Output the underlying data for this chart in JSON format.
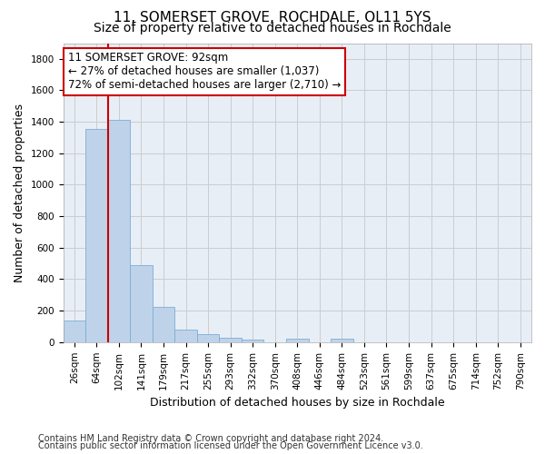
{
  "title_line1": "11, SOMERSET GROVE, ROCHDALE, OL11 5YS",
  "title_line2": "Size of property relative to detached houses in Rochdale",
  "xlabel": "Distribution of detached houses by size in Rochdale",
  "ylabel": "Number of detached properties",
  "categories": [
    "26sqm",
    "64sqm",
    "102sqm",
    "141sqm",
    "179sqm",
    "217sqm",
    "255sqm",
    "293sqm",
    "332sqm",
    "370sqm",
    "408sqm",
    "446sqm",
    "484sqm",
    "523sqm",
    "561sqm",
    "599sqm",
    "637sqm",
    "675sqm",
    "714sqm",
    "752sqm",
    "790sqm"
  ],
  "values": [
    135,
    1355,
    1410,
    490,
    225,
    80,
    50,
    27,
    15,
    0,
    20,
    0,
    20,
    0,
    0,
    0,
    0,
    0,
    0,
    0,
    0
  ],
  "bar_color": "#bed3ea",
  "bar_edge_color": "#7badd4",
  "vline_color": "#cc0000",
  "vline_pos": 1.5,
  "annotation_text": "11 SOMERSET GROVE: 92sqm\n← 27% of detached houses are smaller (1,037)\n72% of semi-detached houses are larger (2,710) →",
  "annotation_box_facecolor": "#ffffff",
  "annotation_box_edgecolor": "#cc0000",
  "ylim": [
    0,
    1900
  ],
  "yticks": [
    0,
    200,
    400,
    600,
    800,
    1000,
    1200,
    1400,
    1600,
    1800
  ],
  "grid_color": "#cccccc",
  "bg_color": "#e8eef6",
  "footer_line1": "Contains HM Land Registry data © Crown copyright and database right 2024.",
  "footer_line2": "Contains public sector information licensed under the Open Government Licence v3.0.",
  "title1_fontsize": 11,
  "title2_fontsize": 10,
  "axis_label_fontsize": 9,
  "tick_fontsize": 7.5,
  "annotation_fontsize": 8.5,
  "footer_fontsize": 7
}
